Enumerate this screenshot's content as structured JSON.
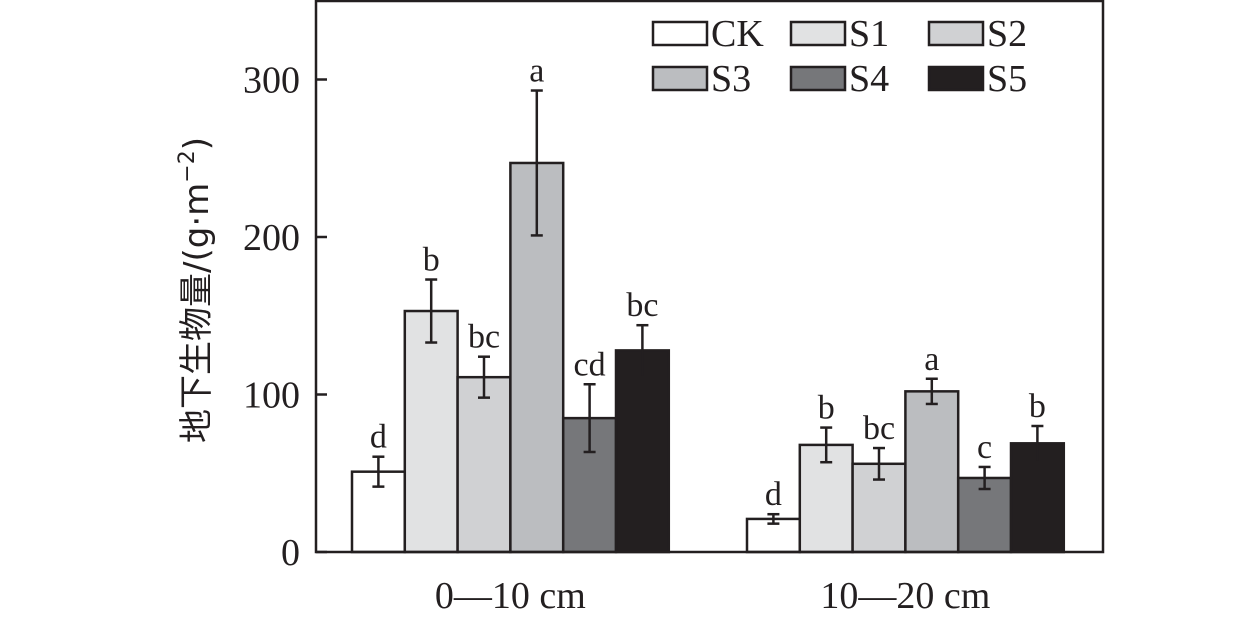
{
  "chart_data": {
    "type": "bar",
    "title": "",
    "xlabel": "",
    "ylabel": "地下生物量/(g·m⁻²)",
    "ylabel_main": "地下生物量/(g·m",
    "ylabel_sup": "−2",
    "ylabel_close": ")",
    "ylim": [
      0,
      350
    ],
    "yticks": [
      0,
      100,
      200,
      300
    ],
    "ytick_labels": [
      "0",
      "100",
      "200",
      "300"
    ],
    "grid": false,
    "legend_position": "top-right",
    "categories": [
      "0—10 cm",
      "10—20 cm"
    ],
    "series": [
      {
        "name": "CK",
        "color": "#ffffff",
        "values": [
          51,
          21
        ],
        "errors": [
          9.5,
          3
        ],
        "labels": [
          "d",
          "d"
        ]
      },
      {
        "name": "S1",
        "color": "#e1e2e3",
        "values": [
          153,
          68
        ],
        "errors": [
          20,
          11
        ],
        "labels": [
          "b",
          "b"
        ]
      },
      {
        "name": "S2",
        "color": "#d0d1d3",
        "values": [
          111,
          56
        ],
        "errors": [
          13,
          10
        ],
        "labels": [
          "bc",
          "bc"
        ]
      },
      {
        "name": "S3",
        "color": "#bbbdc0",
        "values": [
          247,
          102
        ],
        "errors": [
          46,
          8
        ],
        "labels": [
          "a",
          "a"
        ]
      },
      {
        "name": "S4",
        "color": "#76777a",
        "values": [
          85,
          47
        ],
        "errors": [
          21.5,
          7
        ],
        "labels": [
          "cd",
          "c"
        ]
      },
      {
        "name": "S5",
        "color": "#231f20",
        "values": [
          128,
          69
        ],
        "errors": [
          16,
          11
        ],
        "labels": [
          "bc",
          "b"
        ]
      }
    ]
  }
}
